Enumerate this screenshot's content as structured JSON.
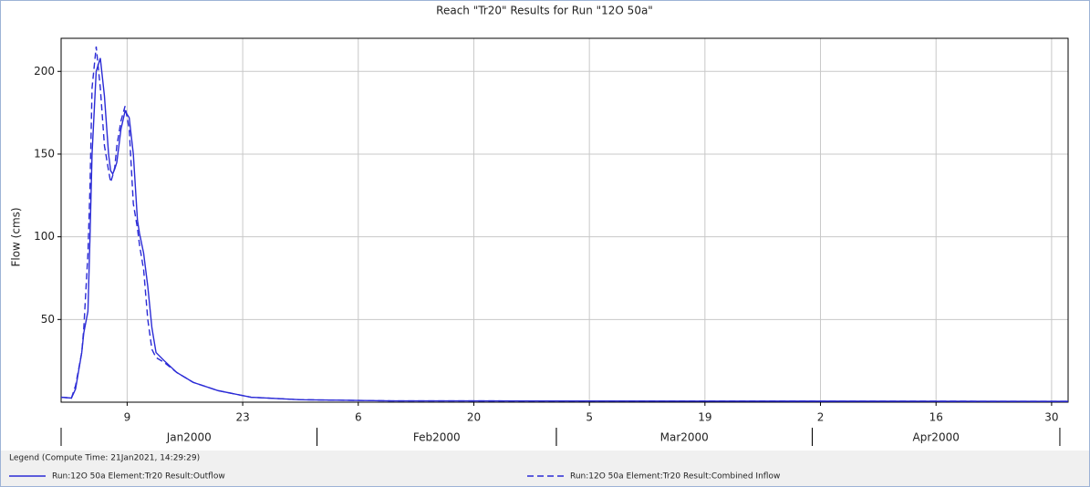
{
  "chart_data": {
    "type": "line",
    "title": "Reach \"Tr20\" Results for Run \"12O 50a\"",
    "y_label": "Flow (cms)",
    "legend_title": "Legend (Compute Time: 21Jan2021, 14:29:29)",
    "x": [
      "2000-01-01 00:00",
      "2000-01-02 06:00",
      "2000-01-02 18:00",
      "2000-01-03 12:00",
      "2000-01-03 18:00",
      "2000-01-04 06:00",
      "2000-01-04 12:00",
      "2000-01-04 18:00",
      "2000-01-05 06:00",
      "2000-01-05 18:00",
      "2000-01-06 06:00",
      "2000-01-06 18:00",
      "2000-01-07 00:00",
      "2000-01-07 06:00",
      "2000-01-07 12:00",
      "2000-01-07 18:00",
      "2000-01-08 06:00",
      "2000-01-08 18:00",
      "2000-01-09 06:00",
      "2000-01-09 18:00",
      "2000-01-10 06:00",
      "2000-01-10 12:00",
      "2000-01-11 00:00",
      "2000-01-11 06:00",
      "2000-01-11 12:00",
      "2000-01-12 00:00",
      "2000-01-12 12:00",
      "2000-01-13 12:00",
      "2000-01-15 00:00",
      "2000-01-17 00:00",
      "2000-01-20 00:00",
      "2000-01-24 00:00",
      "2000-01-30 00:00",
      "2000-02-10 00:00",
      "2000-05-02 00:00"
    ],
    "series": [
      {
        "name": "Run:12O 50a Element:Tr20 Result:Outflow",
        "color": "#2b2bd6",
        "dash": false,
        "values": [
          3,
          2.5,
          8,
          30,
          42,
          55,
          100,
          150,
          200,
          208,
          185,
          150,
          140,
          138,
          141,
          145,
          165,
          176,
          172,
          150,
          110,
          102,
          90,
          80,
          70,
          45,
          30,
          25,
          18,
          12,
          7,
          3,
          1.5,
          0.8,
          0.5
        ]
      },
      {
        "name": "Run:12O 50a Element:Tr20 Result:Combined Inflow",
        "color": "#2b2bd6",
        "dash": true,
        "values": [
          3,
          2.5,
          10,
          30,
          45,
          90,
          130,
          190,
          215,
          190,
          155,
          140,
          133,
          137,
          142,
          155,
          170,
          179,
          165,
          120,
          105,
          95,
          80,
          65,
          50,
          32,
          27,
          24,
          18,
          12,
          7,
          3,
          1.5,
          0.8,
          0.5
        ]
      }
    ],
    "xlim": [
      "2000-01-01 00:00",
      "2000-05-02 00:00"
    ],
    "xticks": [
      {
        "value": "2000-01-09 00:00",
        "label": "9"
      },
      {
        "value": "2000-01-23 00:00",
        "label": "23"
      },
      {
        "value": "2000-02-06 00:00",
        "label": "6"
      },
      {
        "value": "2000-02-20 00:00",
        "label": "20"
      },
      {
        "value": "2000-03-05 00:00",
        "label": "5"
      },
      {
        "value": "2000-03-19 00:00",
        "label": "19"
      },
      {
        "value": "2000-04-02 00:00",
        "label": "2"
      },
      {
        "value": "2000-04-16 00:00",
        "label": "16"
      },
      {
        "value": "2000-04-30 00:00",
        "label": "30"
      }
    ],
    "months": [
      {
        "value": "2000-01",
        "label": "Jan2000"
      },
      {
        "value": "2000-02",
        "label": "Feb2000"
      },
      {
        "value": "2000-03",
        "label": "Mar2000"
      },
      {
        "value": "2000-04",
        "label": "Apr2000"
      }
    ],
    "ylim": [
      0,
      220
    ],
    "yticks": [
      50,
      100,
      150,
      200
    ],
    "grid": true
  }
}
